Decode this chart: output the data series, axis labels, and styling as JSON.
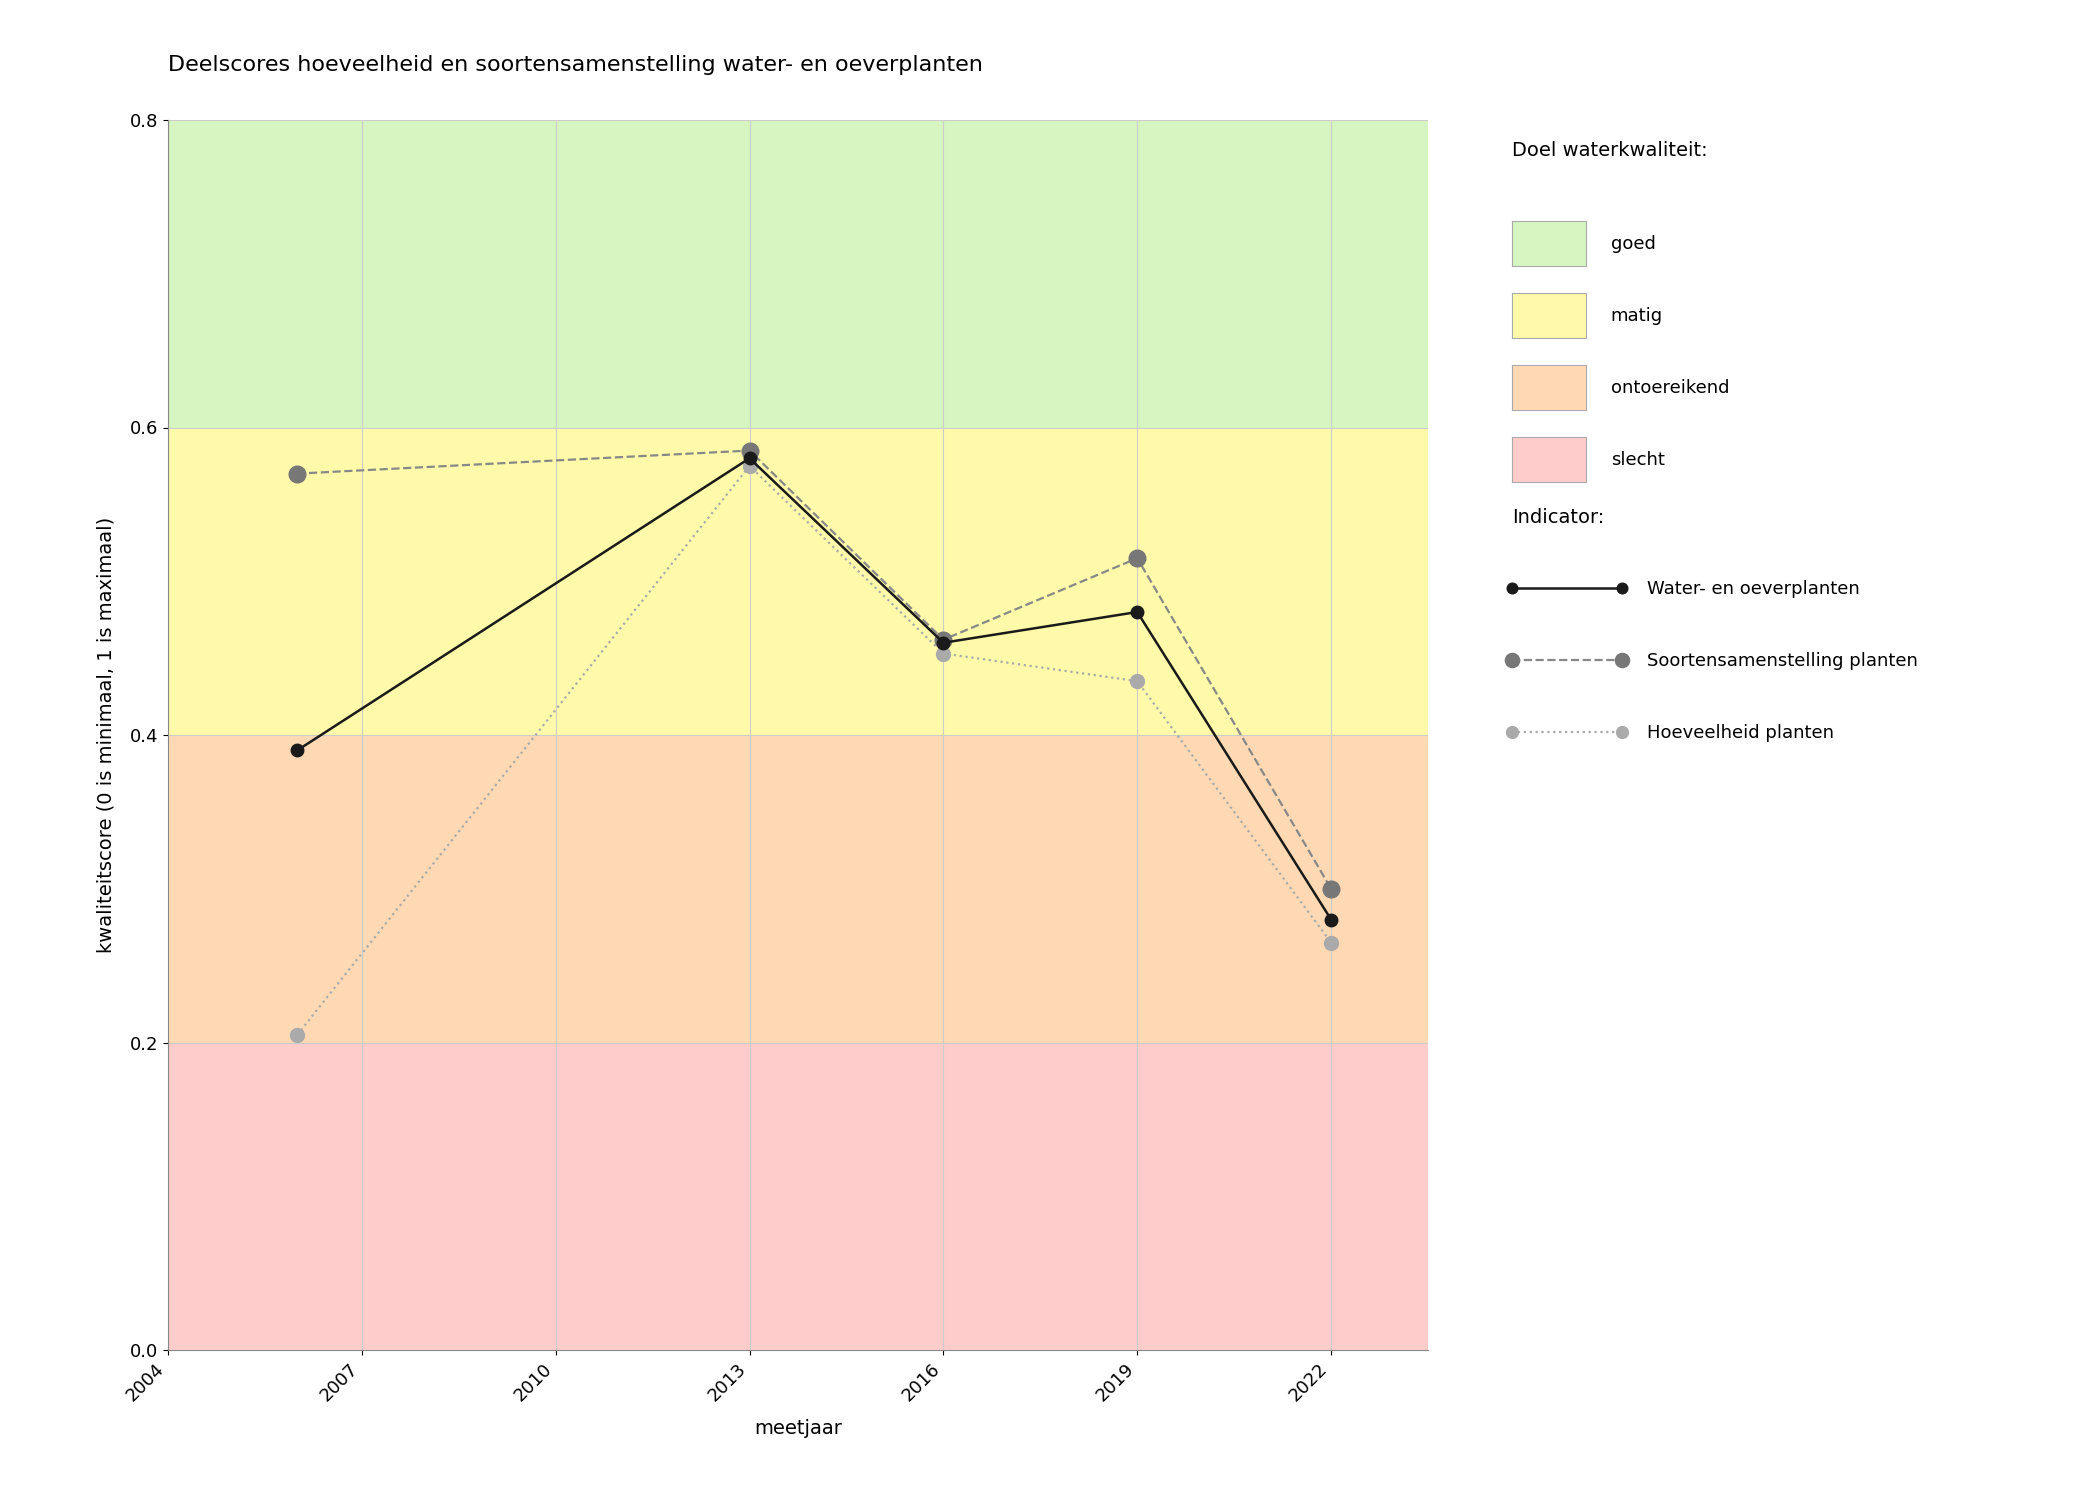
{
  "title": "Deelscores hoeveelheid en soortensamenstelling water- en oeverplanten",
  "xlabel": "meetjaar",
  "ylabel": "kwaliteitscore (0 is minimaal, 1 is maximaal)",
  "ylim": [
    0.0,
    0.8
  ],
  "xlim": [
    2004,
    2023.5
  ],
  "xticks": [
    2004,
    2007,
    2010,
    2013,
    2016,
    2019,
    2022
  ],
  "yticks": [
    0.0,
    0.2,
    0.4,
    0.6,
    0.8
  ],
  "background_zones": [
    {
      "ymin": 0.0,
      "ymax": 0.2,
      "color": "#FFCCCC",
      "label": "slecht"
    },
    {
      "ymin": 0.2,
      "ymax": 0.4,
      "color": "#FFD9B3",
      "label": "ontoereikend"
    },
    {
      "ymin": 0.4,
      "ymax": 0.6,
      "color": "#FFFAAA",
      "label": "matig"
    },
    {
      "ymin": 0.6,
      "ymax": 0.8,
      "color": "#D6F5C0",
      "label": "goed"
    }
  ],
  "series": [
    {
      "name": "Water- en oeverplanten",
      "x": [
        2006,
        2013,
        2016,
        2019,
        2022
      ],
      "y": [
        0.39,
        0.58,
        0.46,
        0.48,
        0.28
      ],
      "color": "#1a1a1a",
      "linestyle": "solid",
      "linewidth": 1.8,
      "markersize": 9,
      "marker": "o",
      "markerfacecolor": "#1a1a1a",
      "markeredgecolor": "#1a1a1a",
      "zorder": 5
    },
    {
      "name": "Soortensamenstelling planten",
      "x": [
        2006,
        2013,
        2016,
        2019,
        2022
      ],
      "y": [
        0.57,
        0.585,
        0.462,
        0.515,
        0.3
      ],
      "color": "#888888",
      "linestyle": "dashed",
      "linewidth": 1.6,
      "markersize": 12,
      "marker": "o",
      "markerfacecolor": "#777777",
      "markeredgecolor": "#777777",
      "zorder": 4
    },
    {
      "name": "Hoeveelheid planten",
      "x": [
        2006,
        2013,
        2016,
        2019,
        2022
      ],
      "y": [
        0.205,
        0.575,
        0.453,
        0.435,
        0.265
      ],
      "color": "#aaaaaa",
      "linestyle": "dotted",
      "linewidth": 1.6,
      "markersize": 10,
      "marker": "o",
      "markerfacecolor": "#aaaaaa",
      "markeredgecolor": "#aaaaaa",
      "zorder": 3
    }
  ],
  "legend_zone_title": "Doel waterkwaliteit:",
  "legend_indicator_title": "Indicator:",
  "legend_zone_colors": [
    "#D6F5C0",
    "#FFFAAA",
    "#FFD9B3",
    "#FFCCCC"
  ],
  "legend_zone_labels": [
    "goed",
    "matig",
    "ontoereikend",
    "slecht"
  ],
  "background_color": "#ffffff",
  "grid_color": "#cccccc",
  "title_fontsize": 16,
  "label_fontsize": 14,
  "tick_fontsize": 13,
  "legend_fontsize": 13
}
